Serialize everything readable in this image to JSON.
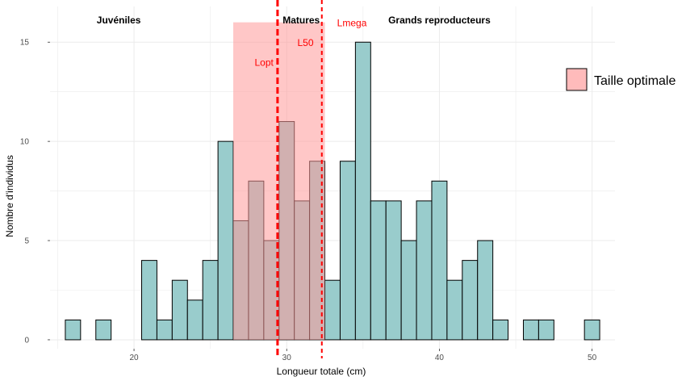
{
  "chart_data": {
    "type": "bar",
    "xlabel": "Longueur totale (cm)",
    "ylabel": "Nombre d'individus",
    "xlim": [
      14.5,
      51.5
    ],
    "ylim": [
      -0.45,
      16.8
    ],
    "xticks": [
      20,
      30,
      40,
      50
    ],
    "yticks": [
      0,
      5,
      10,
      15
    ],
    "bin_width": 1,
    "bins": [
      {
        "x": 16,
        "value": 1
      },
      {
        "x": 17,
        "value": 0
      },
      {
        "x": 18,
        "value": 1
      },
      {
        "x": 19,
        "value": 0
      },
      {
        "x": 20,
        "value": 0
      },
      {
        "x": 21,
        "value": 4
      },
      {
        "x": 22,
        "value": 1
      },
      {
        "x": 23,
        "value": 3
      },
      {
        "x": 24,
        "value": 2
      },
      {
        "x": 25,
        "value": 4
      },
      {
        "x": 26,
        "value": 10
      },
      {
        "x": 27,
        "value": 6
      },
      {
        "x": 28,
        "value": 8
      },
      {
        "x": 29,
        "value": 5
      },
      {
        "x": 30,
        "value": 11
      },
      {
        "x": 31,
        "value": 7
      },
      {
        "x": 32,
        "value": 9
      },
      {
        "x": 33,
        "value": 3
      },
      {
        "x": 34,
        "value": 9
      },
      {
        "x": 35,
        "value": 15
      },
      {
        "x": 36,
        "value": 7
      },
      {
        "x": 37,
        "value": 7
      },
      {
        "x": 38,
        "value": 5
      },
      {
        "x": 39,
        "value": 7
      },
      {
        "x": 40,
        "value": 8
      },
      {
        "x": 41,
        "value": 3
      },
      {
        "x": 42,
        "value": 4
      },
      {
        "x": 43,
        "value": 5
      },
      {
        "x": 44,
        "value": 1
      },
      {
        "x": 45,
        "value": 0
      },
      {
        "x": 46,
        "value": 1
      },
      {
        "x": 47,
        "value": 1
      },
      {
        "x": 48,
        "value": 0
      },
      {
        "x": 49,
        "value": 0
      },
      {
        "x": 50,
        "value": 1
      }
    ],
    "bar_color": "#99cccc",
    "bar_edge_color": "#000000",
    "optimal_band": {
      "xmin": 26.5,
      "xmax": 32.5,
      "ymax": 16,
      "color": "#ff9999",
      "opacity": 0.55
    },
    "vlines": [
      {
        "x": 29.4,
        "color": "#ff0000",
        "style": "dashed",
        "width": "thick"
      },
      {
        "x": 32.3,
        "color": "#ff0000",
        "style": "dashed",
        "width": "thin"
      }
    ],
    "annotations": [
      {
        "text": "Lopt",
        "x": 27.9,
        "y": 13.8
      },
      {
        "text": "L50",
        "x": 30.7,
        "y": 14.8
      },
      {
        "text": "Lmega",
        "x": 33.3,
        "y": 15.8
      }
    ],
    "sections": [
      {
        "text": "Juvéniles",
        "x": 19.0
      },
      {
        "text": "Matures",
        "x": 30.95
      },
      {
        "text": "Grands reproducteurs",
        "x": 40.0
      }
    ],
    "annotation_color": "#ff0000",
    "legend": {
      "label": "Taille optimale",
      "position": "right",
      "swatch_color": "#ffbbbb"
    },
    "grid": true
  }
}
